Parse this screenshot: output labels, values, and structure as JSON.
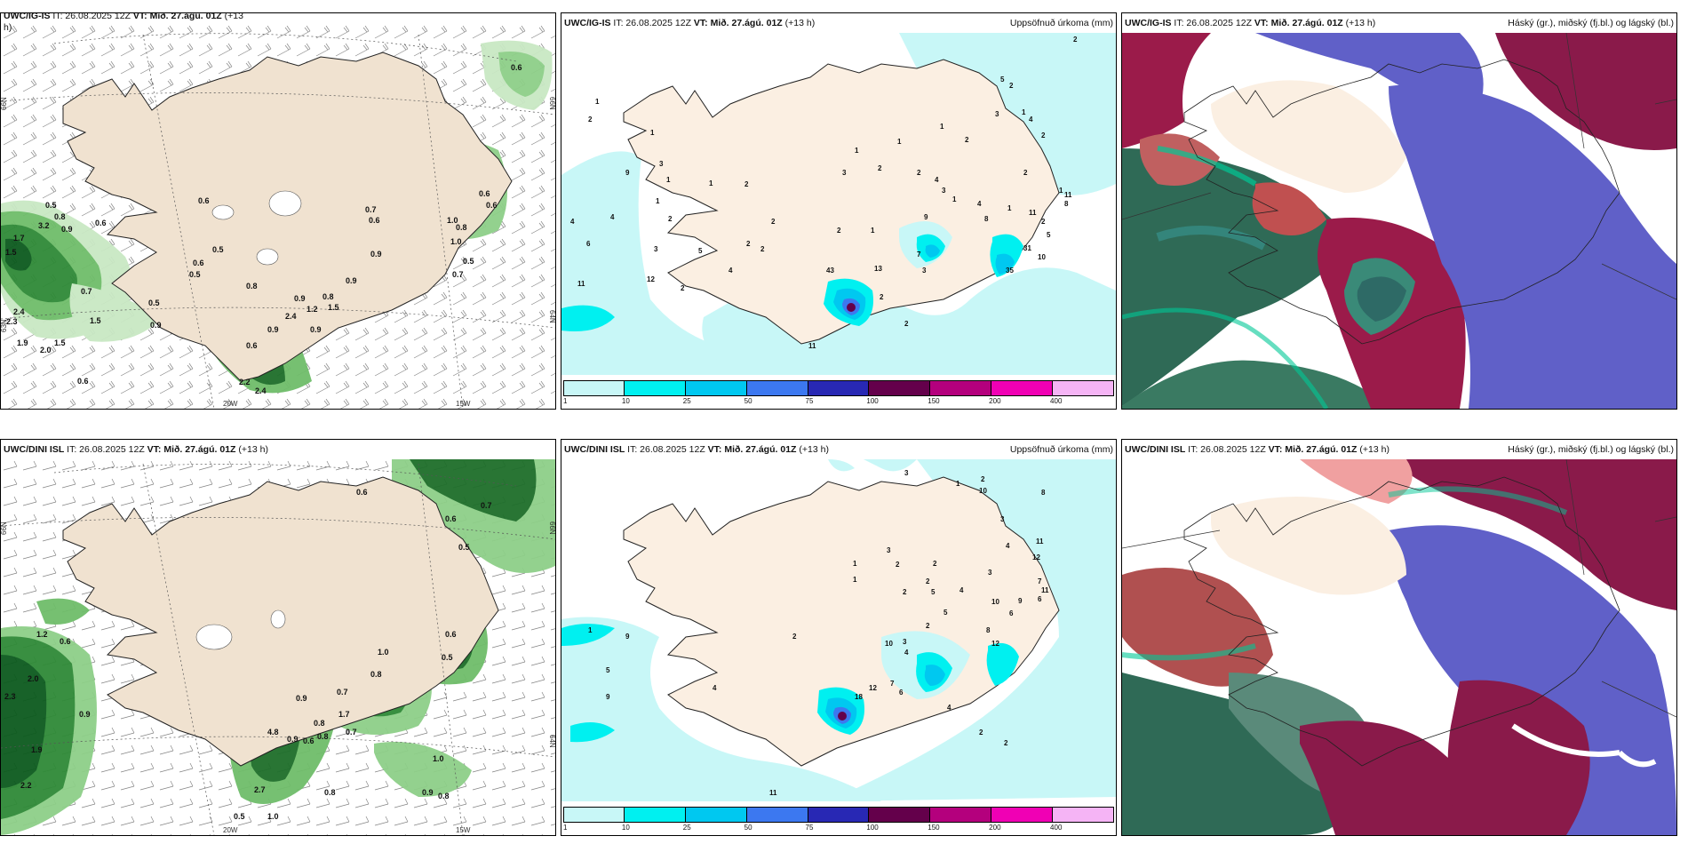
{
  "top_row": {
    "panel1": {
      "title_model": "UWC/IG-IS",
      "title_rest": "IT: 26.08.2025 12Z",
      "vt_label": "VT: Mið. 27.ágú. 01Z",
      "lead": "(+13",
      "lead2": "h)"
    },
    "panel2": {
      "title_model": "UWC/IG-IS",
      "title_rest": "IT: 26.08.2025 12Z",
      "vt_label": "VT: Mið. 27.ágú. 01Z",
      "lead": "(+13 h)",
      "variable": "Uppsöfnuð úrkoma (mm)"
    },
    "panel3": {
      "title_model": "UWC/IG-IS",
      "title_rest": "IT: 26.08.2025 12Z",
      "vt_label": "VT: Mið. 27.ágú. 01Z",
      "lead": "(+13 h)",
      "variable": "Háský (gr.), miðský (fj.bl.) og lágský (bl.)"
    }
  },
  "bottom_row": {
    "panel1": {
      "title_model": "UWC/DINI ISL",
      "title_rest": "IT: 26.08.2025 12Z",
      "vt_label": "VT: Mið. 27.ágú. 01Z",
      "lead": "(+13 h)"
    },
    "panel2": {
      "title_model": "UWC/DINI ISL",
      "title_rest": "IT: 26.08.2025 12Z",
      "vt_label": "VT: Mið. 27.ágú. 01Z",
      "lead": "(+13 h)",
      "variable": "Uppsöfnuð úrkoma (mm)"
    },
    "panel3": {
      "title_model": "UWC/DINI ISL",
      "title_rest": "IT: 26.08.2025 12Z",
      "vt_label": "VT: Mið. 27.ágú. 01Z",
      "lead": "(+13 h)",
      "variable": "Háský (gr.), miðský (fj.bl.) og lágský (bl.)"
    }
  },
  "axes": {
    "lat_66": "66N",
    "lat_64": "64N",
    "lat_63": "63N",
    "lon_20": "20W",
    "lon_15": "15W"
  },
  "colorbar": {
    "ticks": [
      "1",
      "10",
      "25",
      "50",
      "75",
      "100",
      "150",
      "200",
      "400"
    ],
    "colors": [
      "#c8f7f7",
      "#00f0f0",
      "#00c8f0",
      "#3c78f0",
      "#2828b4",
      "#64004b",
      "#b4007d",
      "#f000b4",
      "#f5b4f5"
    ]
  },
  "precip_labels_top_left": [
    "0.6",
    "0.5",
    "0.8",
    "3.2",
    "0.9",
    "1.7",
    "1.5",
    "0.6",
    "0.5",
    "0.6",
    "0.5",
    "0.7",
    "0.5",
    "2.4",
    "1.5",
    "2.3",
    "0.9",
    "1.9",
    "2.0",
    "1.5",
    "0.6",
    "0.8",
    "0.7",
    "0.6",
    "0.9",
    "1.0",
    "0.8",
    "0.6",
    "0.6",
    "1.0",
    "0.7",
    "0.5",
    "0.9",
    "0.8",
    "1.5",
    "0.9",
    "1.2",
    "2.4",
    "0.9",
    "0.6",
    "0.9",
    "2.2",
    "2.4",
    "0.6"
  ],
  "precip_labels_bottom_left": [
    "0.6",
    "0.7",
    "0.6",
    "0.5",
    "1.2",
    "0.6",
    "2.0",
    "2.3",
    "0.9",
    "1.9",
    "2.2",
    "1.0",
    "0.8",
    "0.6",
    "0.5",
    "0.7",
    "0.9",
    "1.7",
    "0.7",
    "0.8",
    "4.8",
    "0.9",
    "0.6",
    "0.8",
    "0.5",
    "2.7",
    "1.0",
    "0.8",
    "0.9",
    "0.8",
    "1.0"
  ],
  "accum_labels_top": [
    "1",
    "2",
    "1",
    "3",
    "9",
    "1",
    "4",
    "4",
    "6",
    "11",
    "1",
    "2",
    "1",
    "5",
    "3",
    "2",
    "2",
    "2",
    "4",
    "2",
    "2",
    "12",
    "43",
    "13",
    "2",
    "3",
    "2",
    "1",
    "1",
    "2",
    "4",
    "1",
    "3",
    "4",
    "9",
    "7",
    "3",
    "8",
    "1",
    "11",
    "2",
    "2",
    "5",
    "2",
    "4",
    "8",
    "10",
    "11",
    "31",
    "35",
    "5",
    "2",
    "1",
    "3",
    "1",
    "2",
    "1",
    "2",
    "11",
    "2",
    "1",
    "2"
  ],
  "accum_labels_bottom": [
    "3",
    "2",
    "1",
    "3",
    "10",
    "8",
    "4",
    "3",
    "2",
    "1",
    "1",
    "3",
    "2",
    "2",
    "2",
    "5",
    "4",
    "5",
    "11",
    "12",
    "10",
    "9",
    "7",
    "6",
    "8",
    "11",
    "6",
    "2",
    "3",
    "12",
    "10",
    "4",
    "2",
    "5",
    "9",
    "4",
    "7",
    "6",
    "18",
    "12",
    "4",
    "2",
    "2",
    "9",
    "11",
    "1"
  ]
}
